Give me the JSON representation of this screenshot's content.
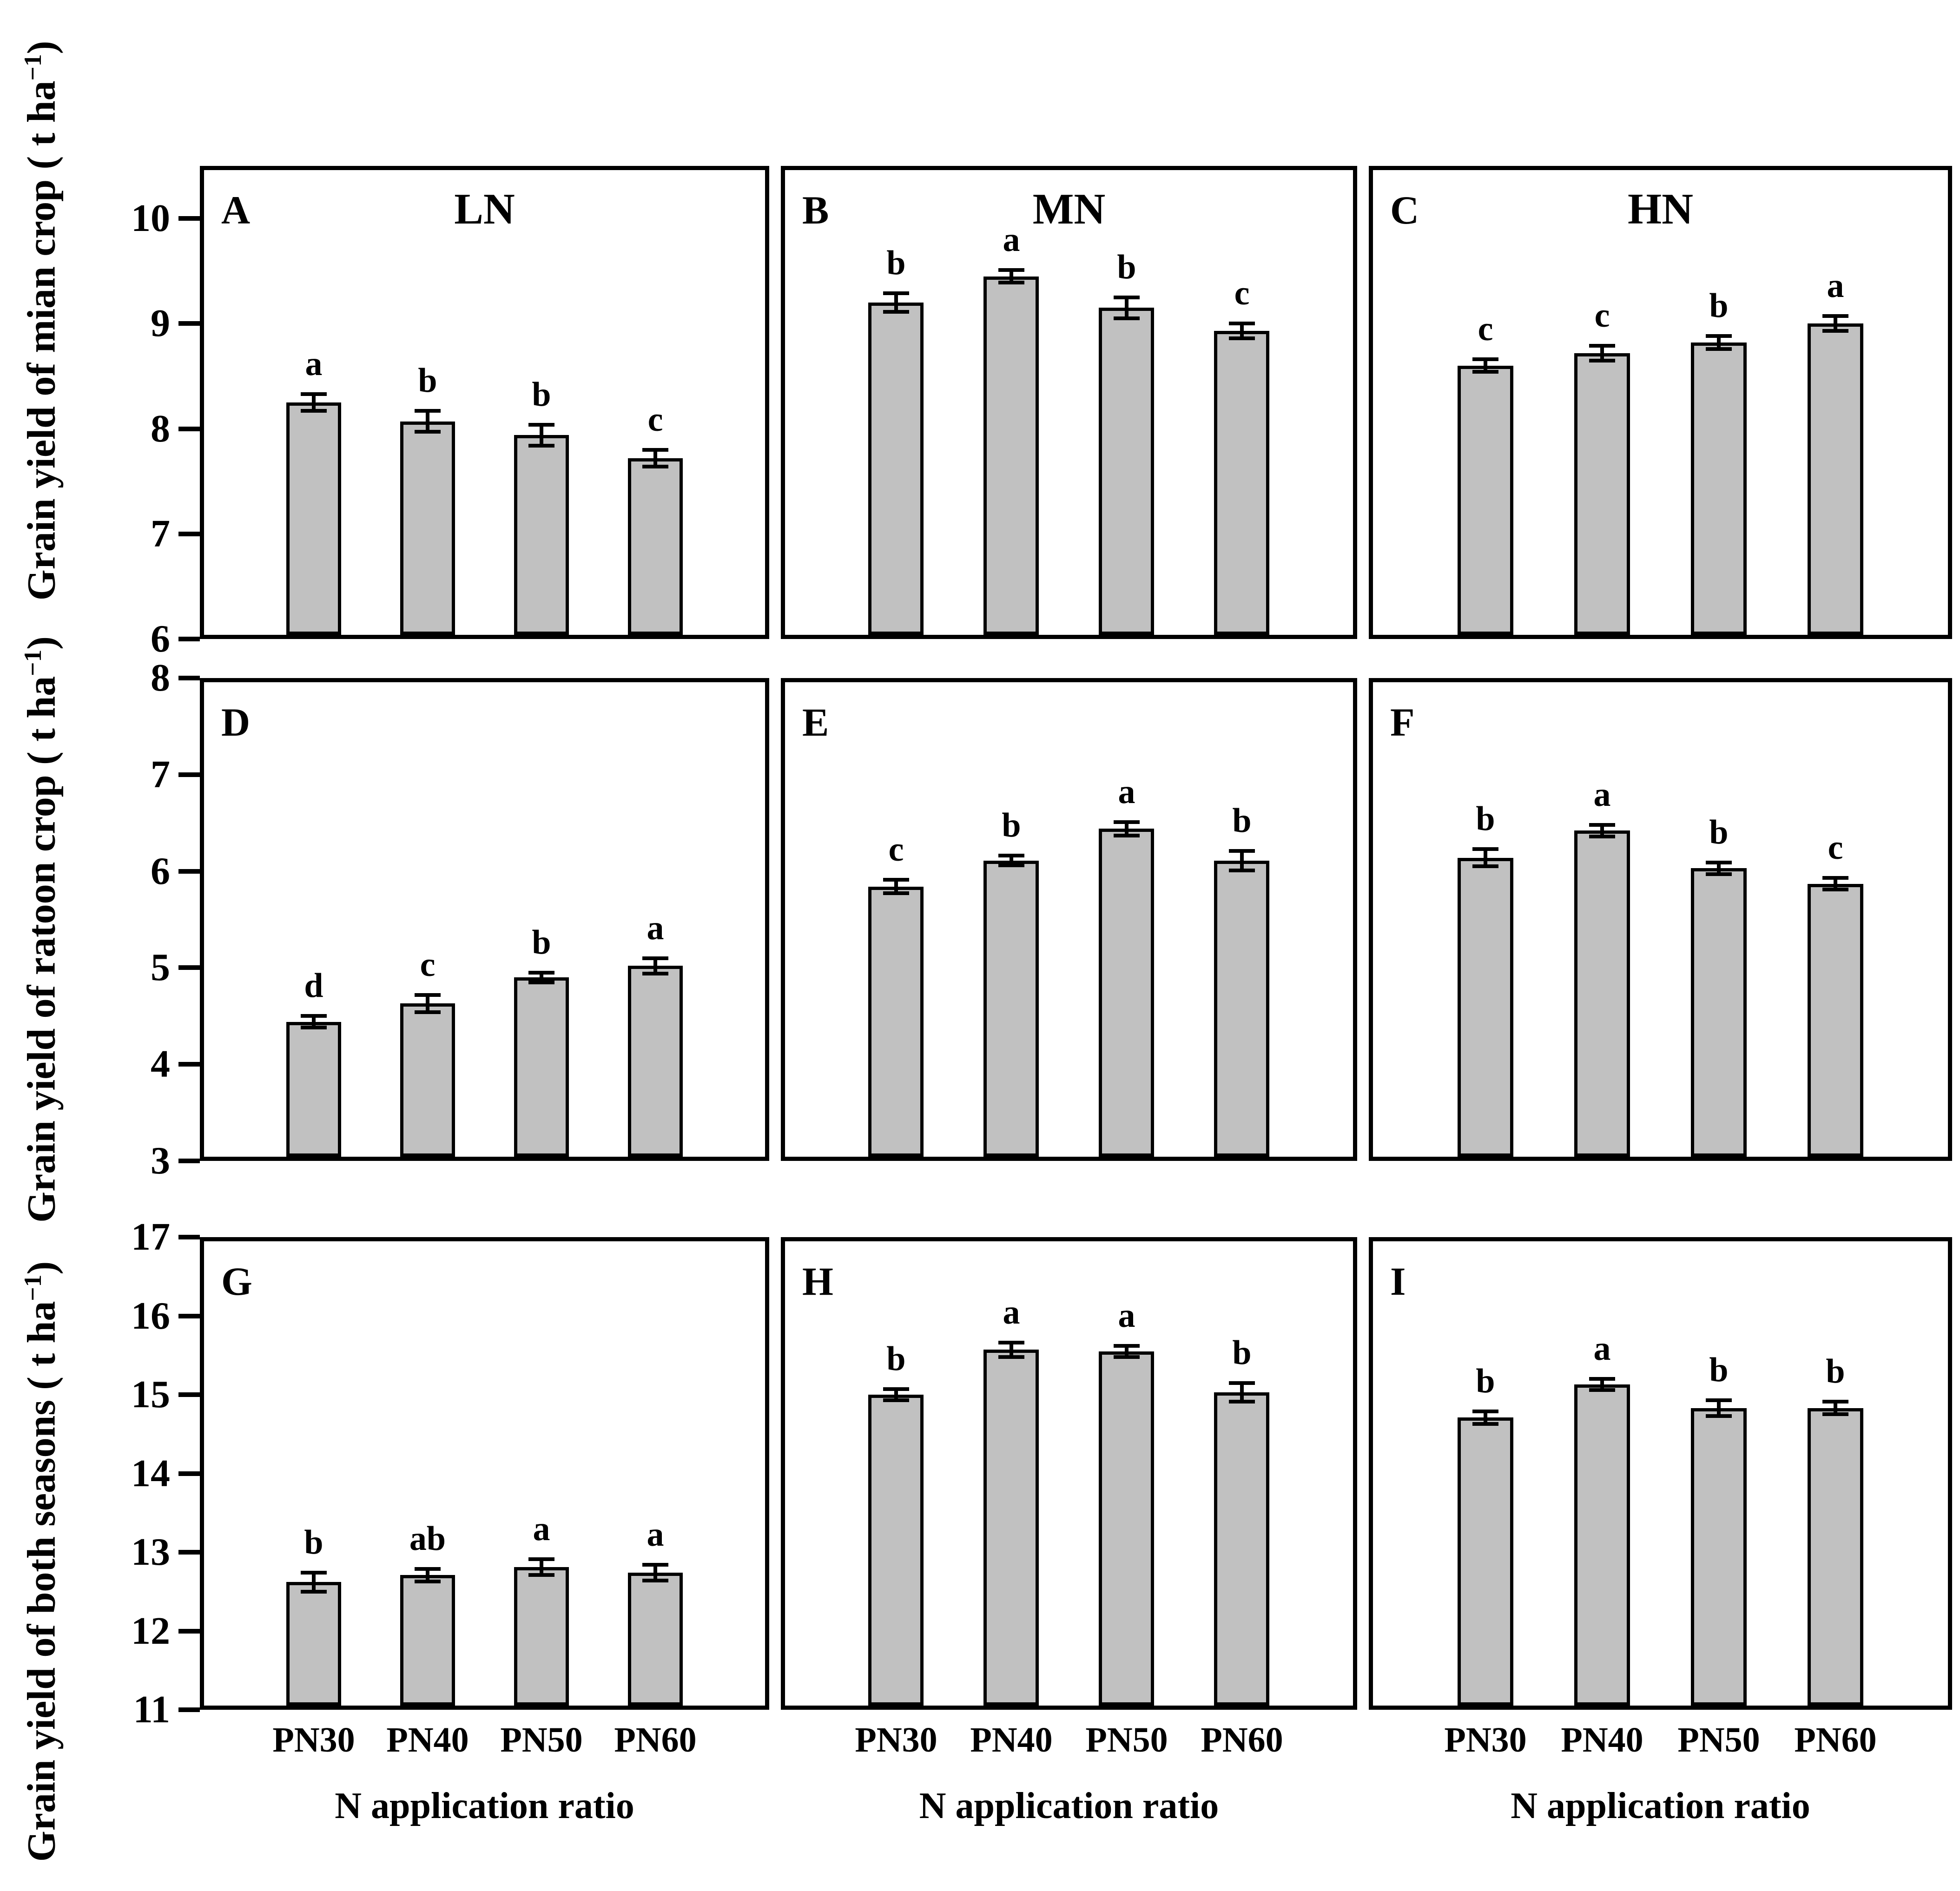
{
  "figure": {
    "background": "#ffffff",
    "colors": {
      "bar_fill": "#c1c1c1",
      "bar_border": "#000000",
      "axis": "#000000",
      "text": "#000000"
    }
  },
  "chart_data": {
    "type": "bar",
    "grid": false,
    "error_bars": true,
    "categories": [
      "PN30",
      "PN40",
      "PN50",
      "PN60"
    ],
    "xlabel": "N application ratio",
    "column_titles": [
      "LN",
      "MN",
      "HN"
    ],
    "rows": [
      {
        "ylabel_prefix": "Grain yield of mian crop ( t ha",
        "ylabel_sup": "−1",
        "ylabel_suffix": ")",
        "ylim": [
          6,
          10.5
        ],
        "yticks": [
          6,
          7,
          8,
          9,
          10
        ],
        "panels": [
          {
            "letter": "A",
            "title": "LN",
            "values": [
              8.25,
              8.07,
              7.94,
              7.72
            ],
            "errors": [
              0.08,
              0.1,
              0.1,
              0.08
            ],
            "sig_letters": [
              "a",
              "b",
              "b",
              "c"
            ]
          },
          {
            "letter": "B",
            "title": "MN",
            "values": [
              9.2,
              9.45,
              9.15,
              8.93
            ],
            "errors": [
              0.09,
              0.06,
              0.1,
              0.07
            ],
            "sig_letters": [
              "b",
              "a",
              "b",
              "c"
            ]
          },
          {
            "letter": "C",
            "title": "HN",
            "values": [
              8.6,
              8.72,
              8.82,
              9.0
            ],
            "errors": [
              0.06,
              0.07,
              0.06,
              0.07
            ],
            "sig_letters": [
              "c",
              "c",
              "b",
              "a"
            ]
          }
        ]
      },
      {
        "ylabel_prefix": "Grain yield of ratoon crop ( t ha",
        "ylabel_sup": "−1",
        "ylabel_suffix": ")",
        "ylim": [
          3,
          8
        ],
        "yticks": [
          3,
          4,
          5,
          6,
          7,
          8
        ],
        "panels": [
          {
            "letter": "D",
            "title": "",
            "values": [
              4.44,
              4.63,
              4.9,
              5.02
            ],
            "errors": [
              0.06,
              0.09,
              0.05,
              0.08
            ],
            "sig_letters": [
              "d",
              "c",
              "b",
              "a"
            ]
          },
          {
            "letter": "E",
            "title": "",
            "values": [
              5.84,
              6.11,
              6.44,
              6.11
            ],
            "errors": [
              0.07,
              0.05,
              0.07,
              0.1
            ],
            "sig_letters": [
              "c",
              "b",
              "a",
              "b"
            ]
          },
          {
            "letter": "F",
            "title": "",
            "values": [
              6.14,
              6.42,
              6.03,
              5.87
            ],
            "errors": [
              0.09,
              0.06,
              0.06,
              0.06
            ],
            "sig_letters": [
              "b",
              "a",
              "b",
              "c"
            ]
          }
        ]
      },
      {
        "ylabel_prefix": "Grain yield of both seasons ( t ha",
        "ylabel_sup": "−1",
        "ylabel_suffix": ")",
        "ylim": [
          11,
          17
        ],
        "yticks": [
          11,
          12,
          13,
          14,
          15,
          16,
          17
        ],
        "panels": [
          {
            "letter": "G",
            "title": "",
            "values": [
              12.62,
              12.71,
              12.81,
              12.74
            ],
            "errors": [
              0.12,
              0.08,
              0.1,
              0.1
            ],
            "sig_letters": [
              "b",
              "ab",
              "a",
              "a"
            ]
          },
          {
            "letter": "H",
            "title": "",
            "values": [
              15.0,
              15.57,
              15.55,
              15.03
            ],
            "errors": [
              0.07,
              0.09,
              0.07,
              0.12
            ],
            "sig_letters": [
              "b",
              "a",
              "a",
              "b"
            ]
          },
          {
            "letter": "I",
            "title": "",
            "values": [
              14.71,
              15.13,
              14.83,
              14.83
            ],
            "errors": [
              0.08,
              0.07,
              0.1,
              0.08
            ],
            "sig_letters": [
              "b",
              "a",
              "b",
              "b"
            ]
          }
        ]
      }
    ]
  }
}
